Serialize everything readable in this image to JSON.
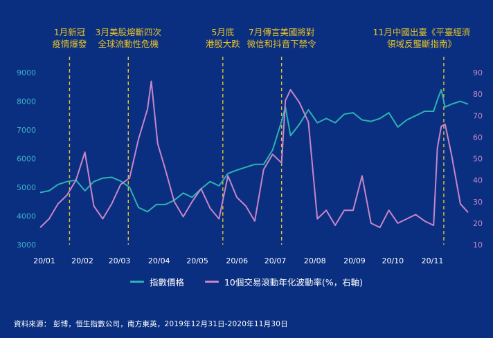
{
  "colors": {
    "background": "#0b2f80",
    "index_line": "#2cb3b3",
    "vol_line": "#c985c9",
    "annotation": "#e6c229",
    "left_axis_text": "#3ab0c8",
    "right_axis_text": "#c985c9",
    "x_axis_text": "#ffffff"
  },
  "chart_data": {
    "type": "line",
    "x_tick_labels": [
      "20/01",
      "20/02",
      "20/03",
      "20/04",
      "20/05",
      "20/06",
      "20/07",
      "20/08",
      "20/09",
      "20/10",
      "20/11"
    ],
    "y_left": {
      "ticks": [
        3000,
        4000,
        5000,
        6000,
        7000,
        8000,
        9000
      ],
      "lim": [
        3000,
        9000
      ]
    },
    "y_right": {
      "ticks": [
        10,
        20,
        30,
        40,
        50,
        60,
        70,
        80,
        90
      ],
      "lim": [
        10,
        90
      ]
    },
    "series": [
      {
        "name": "指數價格",
        "axis": "left",
        "x": [
          "2019-12-31",
          "2020-01-07",
          "2020-01-14",
          "2020-01-21",
          "2020-01-28",
          "2020-02-04",
          "2020-02-11",
          "2020-02-18",
          "2020-02-25",
          "2020-03-03",
          "2020-03-10",
          "2020-03-17",
          "2020-03-24",
          "2020-03-31",
          "2020-04-07",
          "2020-04-14",
          "2020-04-21",
          "2020-04-28",
          "2020-05-05",
          "2020-05-12",
          "2020-05-19",
          "2020-05-26",
          "2020-06-02",
          "2020-06-09",
          "2020-06-16",
          "2020-06-23",
          "2020-06-30",
          "2020-07-07",
          "2020-07-10",
          "2020-07-14",
          "2020-07-21",
          "2020-07-28",
          "2020-08-04",
          "2020-08-11",
          "2020-08-18",
          "2020-08-25",
          "2020-09-01",
          "2020-09-08",
          "2020-09-15",
          "2020-09-22",
          "2020-09-29",
          "2020-10-06",
          "2020-10-13",
          "2020-10-20",
          "2020-10-27",
          "2020-11-03",
          "2020-11-06",
          "2020-11-09",
          "2020-11-12",
          "2020-11-17",
          "2020-11-24",
          "2020-11-30"
        ],
        "y": [
          4820,
          4880,
          5100,
          5200,
          5250,
          4880,
          5200,
          5320,
          5350,
          5220,
          5000,
          4300,
          4150,
          4400,
          4400,
          4550,
          4800,
          4650,
          4950,
          5200,
          5050,
          5480,
          5600,
          5700,
          5800,
          5800,
          6300,
          7300,
          7800,
          6800,
          7200,
          7700,
          7250,
          7400,
          7250,
          7550,
          7600,
          7350,
          7300,
          7400,
          7600,
          7100,
          7350,
          7500,
          7650,
          7650,
          8050,
          8400,
          7800,
          7900,
          8000,
          7900
        ]
      },
      {
        "name": "10個交易滾動年化波動率(%，右軸)",
        "axis": "right",
        "x": [
          "2019-12-31",
          "2020-01-07",
          "2020-01-14",
          "2020-01-21",
          "2020-01-28",
          "2020-02-04",
          "2020-02-11",
          "2020-02-18",
          "2020-02-25",
          "2020-03-03",
          "2020-03-10",
          "2020-03-17",
          "2020-03-24",
          "2020-03-27",
          "2020-04-01",
          "2020-04-07",
          "2020-04-14",
          "2020-04-21",
          "2020-04-28",
          "2020-05-05",
          "2020-05-12",
          "2020-05-19",
          "2020-05-26",
          "2020-06-02",
          "2020-06-09",
          "2020-06-16",
          "2020-06-23",
          "2020-06-30",
          "2020-07-07",
          "2020-07-10",
          "2020-07-14",
          "2020-07-21",
          "2020-07-28",
          "2020-08-04",
          "2020-08-11",
          "2020-08-18",
          "2020-08-25",
          "2020-09-01",
          "2020-09-08",
          "2020-09-15",
          "2020-09-22",
          "2020-09-29",
          "2020-10-06",
          "2020-10-13",
          "2020-10-20",
          "2020-10-27",
          "2020-11-03",
          "2020-11-06",
          "2020-11-09",
          "2020-11-12",
          "2020-11-17",
          "2020-11-24",
          "2020-11-30"
        ],
        "y": [
          18,
          22,
          29,
          33,
          40,
          53,
          28,
          22,
          29,
          38,
          41,
          59,
          73,
          86,
          57,
          45,
          30,
          23,
          30,
          36,
          27,
          22,
          42,
          32,
          28,
          21,
          45,
          52,
          48,
          77,
          82,
          76,
          67,
          22,
          26,
          19,
          26,
          26,
          42,
          20,
          18,
          26,
          20,
          22,
          24,
          21,
          19,
          55,
          65,
          66,
          52,
          29,
          25
        ]
      }
    ],
    "annotations": [
      {
        "date": "2020-01-23",
        "text": [
          "1月新冠",
          "疫情爆發"
        ]
      },
      {
        "date": "2020-03-09",
        "text": [
          "3月美股熔斷四次",
          "全球流動性危機"
        ]
      },
      {
        "date": "2020-05-22",
        "text": [
          "5月底",
          "港股大跌"
        ]
      },
      {
        "date": "2020-07-07",
        "text": [
          "7月傳言美國將對",
          "微信和抖音下禁令"
        ]
      },
      {
        "date": "2020-11-11",
        "text": [
          "11月中國出臺《平臺經濟",
          "領域反壟斷指南》"
        ]
      }
    ]
  },
  "legend": {
    "index_label": "指數價格",
    "vol_label": "10個交易滾動年化波動率(%，右軸)"
  },
  "source": "資料來源： 彭博，恒生指數公司，南方東英，2019年12月31日-2020年11月30日"
}
